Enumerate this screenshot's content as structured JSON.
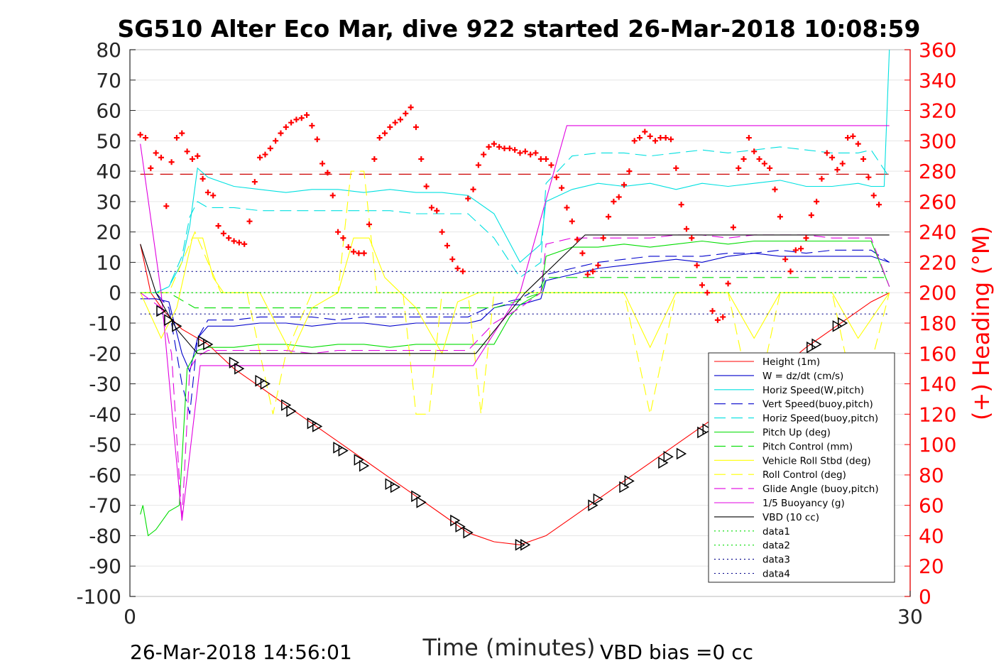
{
  "chart_data": {
    "type": "line",
    "title": "SG510 Alter Eco Mar, dive 922 started 26-Mar-2018 10:08:59",
    "xlabel": "Time (minutes)",
    "ylabel": "",
    "ylabel_right": "(+) Heading (°M)",
    "xlim": [
      0,
      30
    ],
    "ylim": [
      -100,
      80
    ],
    "ylim_right": [
      0,
      360
    ],
    "x_ticks": [
      0,
      30
    ],
    "y_ticks": [
      80,
      70,
      60,
      50,
      40,
      30,
      20,
      10,
      0,
      -10,
      -20,
      -30,
      -40,
      -50,
      -60,
      -70,
      -80,
      -90,
      -100
    ],
    "y_ticks_right": [
      360,
      340,
      320,
      300,
      280,
      260,
      240,
      220,
      200,
      180,
      160,
      140,
      120,
      100,
      80,
      60,
      40,
      20,
      0
    ],
    "footer_left": "26-Mar-2018 14:56:01",
    "footer_right": "VBD bias =0 cc",
    "grid": true,
    "legend_position": "bottom-right",
    "series": [
      {
        "name": "Height (1m)",
        "color": "#ff0000",
        "style": "solid",
        "x": [
          0.4,
          0.8,
          1.3,
          2.0,
          3.0,
          4.0,
          5.0,
          6.0,
          7.0,
          8.0,
          9.0,
          10.0,
          11.0,
          12.0,
          13.0,
          14.0,
          15.0,
          16.0,
          17.0,
          18.0,
          19.0,
          20.0,
          21.0,
          22.0,
          23.0,
          24.0,
          25.0,
          26.0,
          27.0,
          28.0,
          28.5,
          29.2
        ],
        "y": [
          16,
          0,
          -6,
          -12,
          -17,
          -25,
          -31,
          -37,
          -43,
          -49,
          -55,
          -61,
          -67,
          -73,
          -79,
          -82,
          -83,
          -80,
          -74,
          -68,
          -62,
          -56,
          -50,
          -44,
          -38,
          -32,
          -25,
          -18,
          -12,
          -6,
          -3,
          0
        ]
      },
      {
        "name": "W = dz/dt (cm/s)",
        "color": "#0000cc",
        "style": "solid",
        "x": [
          0.4,
          1.0,
          1.5,
          2.0,
          2.3,
          2.6,
          3.0,
          4,
          5,
          6,
          7,
          8,
          9,
          10,
          11,
          12,
          13,
          13.5,
          14,
          14.5,
          15,
          15.8,
          16,
          17,
          18,
          19,
          20,
          21,
          22,
          23,
          24,
          25,
          26,
          27,
          28,
          28.5,
          29.2
        ],
        "y": [
          -2,
          -2,
          -3,
          -20,
          -26,
          -15,
          -11,
          -11,
          -10,
          -10,
          -11,
          -10,
          -10,
          -11,
          -10,
          -10,
          -10,
          -9,
          -5,
          -4,
          -4,
          -2,
          4,
          6,
          8,
          9,
          10,
          11,
          10,
          12,
          13,
          12,
          12,
          12,
          12,
          12,
          10
        ]
      },
      {
        "name": "Horiz Speed(W,pitch)",
        "color": "#00e0e0",
        "style": "solid",
        "x": [
          0.4,
          1.0,
          1.5,
          2.0,
          2.3,
          2.6,
          3.0,
          4,
          5,
          6,
          7,
          8,
          9,
          10,
          11,
          12,
          13,
          14,
          15,
          15.8,
          16,
          17,
          18,
          19,
          20,
          21,
          22,
          23,
          24,
          25,
          26,
          27,
          28,
          28.5,
          29.0,
          29.2
        ],
        "y": [
          0,
          0,
          2,
          10,
          22,
          41,
          38,
          35,
          34,
          33,
          34,
          34,
          33,
          34,
          33,
          33,
          32,
          26,
          10,
          16,
          30,
          34,
          36,
          35,
          36,
          34,
          36,
          35,
          36,
          37,
          35,
          35,
          36,
          35,
          35,
          80
        ]
      },
      {
        "name": "Vert Speed(buoy,pitch)",
        "color": "#0000cc",
        "style": "dashed",
        "x": [
          0.4,
          1.0,
          1.5,
          2.0,
          2.3,
          2.6,
          3.0,
          4,
          5,
          6,
          7,
          8,
          9,
          10,
          11,
          12,
          13,
          14,
          15,
          15.8,
          16,
          17,
          18,
          19,
          20,
          21,
          22,
          23,
          24,
          25,
          26,
          27,
          28,
          28.5,
          29.2
        ],
        "y": [
          0,
          0,
          -5,
          -30,
          -40,
          -15,
          -9,
          -9,
          -8,
          -8,
          -8,
          -9,
          -8,
          -8,
          -8,
          -8,
          -8,
          -4,
          -2,
          2,
          6,
          8,
          10,
          11,
          12,
          12,
          12,
          13,
          13,
          14,
          13,
          14,
          14,
          14,
          10
        ]
      },
      {
        "name": "Horiz Speed(buoy,pitch)",
        "color": "#00e0e0",
        "style": "dashed",
        "x": [
          0.4,
          1.0,
          1.5,
          2.0,
          2.3,
          2.6,
          3.0,
          4,
          5,
          6,
          7,
          8,
          9,
          10,
          11,
          12,
          13,
          14,
          15,
          15.8,
          16,
          17,
          18,
          19,
          20,
          21,
          22,
          23,
          24,
          25,
          26,
          27,
          28,
          28.5,
          29.2
        ],
        "y": [
          0,
          0,
          2,
          12,
          25,
          30,
          28,
          28,
          27,
          27,
          27,
          27,
          27,
          27,
          26,
          26,
          26,
          18,
          5,
          10,
          36,
          45,
          46,
          46,
          45,
          46,
          47,
          46,
          47,
          48,
          47,
          46,
          46,
          47,
          38
        ]
      },
      {
        "name": "Pitch Up (deg)",
        "color": "#00dd00",
        "style": "solid",
        "x": [
          0.4,
          0.5,
          0.7,
          1.0,
          1.5,
          1.9,
          2.2,
          2.6,
          3.0,
          4,
          5,
          6,
          7,
          8,
          9,
          10,
          11,
          12,
          13,
          14,
          14.6,
          15,
          15.8,
          16,
          17,
          18,
          19,
          20,
          21,
          22,
          23,
          24,
          25,
          26,
          27,
          28,
          28.5,
          29.2
        ],
        "y": [
          -73,
          -70,
          -80,
          -78,
          -72,
          -70,
          -25,
          -19,
          -18,
          -18,
          -17,
          -17,
          -18,
          -17,
          -17,
          -18,
          -17,
          -17,
          -17,
          -17,
          -8,
          -4,
          0,
          12,
          15,
          15,
          16,
          15,
          16,
          17,
          16,
          17,
          17,
          17,
          17,
          17,
          17,
          2
        ]
      },
      {
        "name": "Pitch Control (mm)",
        "color": "#00dd00",
        "style": "dashed",
        "x": [
          0.4,
          1.5,
          2.5,
          3.0,
          14.0,
          14.8,
          15.8,
          16.0,
          29.2
        ],
        "y": [
          0,
          0,
          -5,
          -5,
          -5,
          -3,
          0,
          5,
          5
        ]
      },
      {
        "name": "Vehicle Roll Stbd (deg)",
        "color": "#ffff00",
        "style": "solid",
        "x": [
          0.4,
          1.2,
          1.8,
          2.4,
          2.8,
          3.2,
          3.6,
          4.2,
          5,
          5.6,
          6.2,
          7,
          8,
          8.6,
          9.2,
          9.8,
          10.4,
          11,
          12,
          12.6,
          13.4,
          14,
          15,
          16,
          17,
          18,
          19,
          20,
          21,
          22,
          23,
          24,
          25,
          26,
          27,
          28,
          29.2
        ],
        "y": [
          0,
          -15,
          -5,
          18,
          18,
          5,
          0,
          0,
          0,
          -10,
          -20,
          -5,
          0,
          18,
          18,
          5,
          0,
          -5,
          -20,
          -3,
          0,
          0,
          0,
          0,
          0,
          0,
          0,
          -18,
          0,
          0,
          0,
          -15,
          0,
          0,
          0,
          -15,
          0
        ]
      },
      {
        "name": "Roll Control (deg)",
        "color": "#ffff00",
        "style": "dashed",
        "x": [
          0.4,
          1.5,
          2.5,
          3.5,
          4.5,
          5.0,
          5.5,
          6.0,
          7,
          8,
          8.5,
          9.0,
          9.5,
          10.5,
          11.0,
          11.5,
          12.0,
          13,
          13.5,
          14.0,
          15,
          16,
          17,
          18,
          19,
          20,
          21,
          22,
          23,
          24,
          25,
          26,
          27,
          28,
          29.2
        ],
        "y": [
          0,
          0,
          20,
          0,
          0,
          -20,
          -40,
          -20,
          0,
          0,
          40,
          40,
          0,
          0,
          -40,
          -40,
          0,
          0,
          -40,
          0,
          0,
          0,
          0,
          0,
          0,
          -40,
          0,
          0,
          0,
          -40,
          0,
          0,
          0,
          -40,
          0
        ]
      },
      {
        "name": "Glide Angle (buoy,pitch)",
        "color": "#e000e0",
        "style": "dashed",
        "x": [
          0.4,
          1.2,
          1.6,
          2.0,
          2.3,
          2.6,
          3.0,
          4,
          5,
          6,
          7,
          8,
          9,
          10,
          11,
          12,
          13,
          14,
          15,
          15.8,
          16,
          17,
          18,
          19,
          20,
          21,
          22,
          23,
          24,
          25,
          26,
          27,
          28,
          28.5,
          29.2
        ],
        "y": [
          0,
          -5,
          -20,
          -75,
          -25,
          -21,
          -19,
          -19,
          -19,
          -19,
          -20,
          -19,
          -19,
          -19,
          -19,
          -19,
          -19,
          -10,
          -5,
          0,
          16,
          18,
          18,
          18,
          18,
          19,
          19,
          18,
          19,
          19,
          19,
          18,
          18,
          18,
          2
        ]
      },
      {
        "name": "1/5 Buoyancy (g)",
        "color": "#e000e0",
        "style": "solid",
        "x": [
          0.4,
          1.2,
          2.0,
          2.7,
          3.0,
          4,
          5,
          6,
          7,
          8,
          9,
          10,
          11,
          12,
          13,
          13.2,
          15.0,
          16.8,
          17.5,
          20,
          23,
          26,
          29.2
        ],
        "y": [
          49,
          0,
          -75,
          -24,
          -24,
          -24,
          -24,
          -24,
          -24,
          -24,
          -24,
          -24,
          -24,
          -24,
          -24,
          -24,
          0,
          55,
          55,
          55,
          55,
          55,
          55
        ]
      },
      {
        "name": "VBD (10 cc)",
        "color": "#000000",
        "style": "solid",
        "x": [
          0.4,
          1.0,
          1.8,
          2.6,
          3.0,
          8,
          13.0,
          13.3,
          15.2,
          17.5,
          20,
          25,
          29.2
        ],
        "y": [
          16,
          0,
          -12,
          -20,
          -20,
          -20,
          -20,
          -20,
          0,
          19,
          19,
          19,
          19
        ]
      },
      {
        "name": "data1",
        "color": "#00dd00",
        "style": "dotted",
        "x": [
          0.4,
          29.2
        ],
        "y": [
          0,
          0
        ]
      },
      {
        "name": "data2",
        "color": "#00dd00",
        "style": "dotted",
        "x": [
          0.4,
          29.2
        ],
        "y": [
          0,
          0
        ]
      },
      {
        "name": "data3",
        "color": "#000088",
        "style": "dotted",
        "x": [
          0.4,
          29.2
        ],
        "y": [
          -7,
          -7
        ]
      },
      {
        "name": "data4",
        "color": "#000088",
        "style": "dotted",
        "x": [
          0.4,
          29.2
        ],
        "y": [
          7,
          7
        ]
      }
    ],
    "reference_line": {
      "color": "#cc0000",
      "style": "dashed",
      "heading": 278
    },
    "heading_markers": {
      "color": "#ff0000",
      "x": [
        0.4,
        0.6,
        0.8,
        1.0,
        1.2,
        1.4,
        1.6,
        1.8,
        2.0,
        2.2,
        2.4,
        2.6,
        2.8,
        3.0,
        3.2,
        3.4,
        3.6,
        3.8,
        4.0,
        4.2,
        4.4,
        4.6,
        4.8,
        5.0,
        5.2,
        5.4,
        5.6,
        5.8,
        6.0,
        6.2,
        6.4,
        6.6,
        6.8,
        7.0,
        7.2,
        7.4,
        7.6,
        7.8,
        8.0,
        8.2,
        8.4,
        8.6,
        8.8,
        9.0,
        9.2,
        9.4,
        9.6,
        9.8,
        10.0,
        10.2,
        10.4,
        10.6,
        10.8,
        11.0,
        11.2,
        11.4,
        11.6,
        11.8,
        12.0,
        12.2,
        12.4,
        12.6,
        12.8,
        13.0,
        13.2,
        13.4,
        13.6,
        13.8,
        14.0,
        14.2,
        14.4,
        14.6,
        14.8,
        15.0,
        15.2,
        15.4,
        15.6,
        15.8,
        16.0,
        16.2,
        16.4,
        16.6,
        16.8,
        17.0,
        17.2,
        17.4,
        17.6,
        17.8,
        18.0,
        18.2,
        18.4,
        18.6,
        18.8,
        19.0,
        19.2,
        19.4,
        19.6,
        19.8,
        20.0,
        20.2,
        20.4,
        20.6,
        20.8,
        21.0,
        21.2,
        21.4,
        21.6,
        21.8,
        22.0,
        22.2,
        22.4,
        22.6,
        22.8,
        23.0,
        23.2,
        23.4,
        23.6,
        23.8,
        24.0,
        24.2,
        24.4,
        24.6,
        24.8,
        25.0,
        25.2,
        25.4,
        25.6,
        25.8,
        26.0,
        26.2,
        26.4,
        26.6,
        26.8,
        27.0,
        27.2,
        27.4,
        27.6,
        27.8,
        28.0,
        28.2,
        28.4,
        28.6,
        28.8,
        29.0,
        29.2
      ],
      "heading": [
        304,
        302,
        282,
        292,
        289,
        257,
        286,
        302,
        305,
        293,
        288,
        290,
        275,
        266,
        264,
        244,
        239,
        236,
        234,
        233,
        232,
        247,
        273,
        289,
        291,
        295,
        300,
        305,
        309,
        312,
        314,
        315,
        317,
        310,
        301,
        285,
        279,
        264,
        240,
        236,
        230,
        227,
        226,
        226,
        245,
        288,
        302,
        305,
        309,
        312,
        314,
        318,
        322,
        309,
        288,
        270,
        256,
        254,
        240,
        231,
        222,
        216,
        214,
        262,
        268,
        284,
        291,
        296,
        298,
        296,
        295,
        295,
        294,
        292,
        293,
        291,
        292,
        288,
        288,
        284,
        276,
        269,
        256,
        247,
        235,
        226,
        212,
        214,
        218,
        236,
        250,
        260,
        263,
        271,
        280,
        300,
        302,
        306,
        303,
        300,
        302,
        302,
        301,
        282,
        258,
        242,
        236,
        218,
        205,
        200,
        188,
        182,
        184,
        206,
        243,
        282,
        288,
        302,
        293,
        288,
        285,
        282,
        268,
        250,
        222,
        214,
        228,
        229,
        236,
        251,
        260,
        275,
        292,
        289,
        281,
        285,
        302,
        303,
        298,
        288,
        276,
        264,
        258
      ]
    },
    "depth_markers": {
      "color": "#000000",
      "symbol": "triangle",
      "x": [
        1.2,
        1.5,
        1.8,
        2.8,
        3.0,
        4.0,
        4.2,
        5.0,
        5.2,
        6.0,
        6.2,
        7.0,
        7.2,
        8.0,
        8.2,
        8.8,
        9.0,
        10.0,
        10.2,
        11.0,
        11.2,
        12.5,
        12.7,
        13.0,
        15.0,
        15.2,
        17.8,
        18.0,
        19.0,
        19.2,
        20.5,
        20.7,
        21.2,
        22.0,
        22.2,
        23.0,
        23.2,
        26.2,
        26.4,
        27.2,
        27.4
      ],
      "y": [
        -6,
        -9,
        -11,
        -16,
        -17,
        -23,
        -25,
        -29,
        -30,
        -37,
        -39,
        -43,
        -44,
        -51,
        -52,
        -55,
        -57,
        -63,
        -64,
        -67,
        -69,
        -75,
        -77,
        -79,
        -83,
        -83,
        -70,
        -68,
        -64,
        -62,
        -56,
        -54,
        -53,
        -46,
        -45,
        -38,
        -37,
        -18,
        -17,
        -11,
        -10
      ]
    }
  }
}
